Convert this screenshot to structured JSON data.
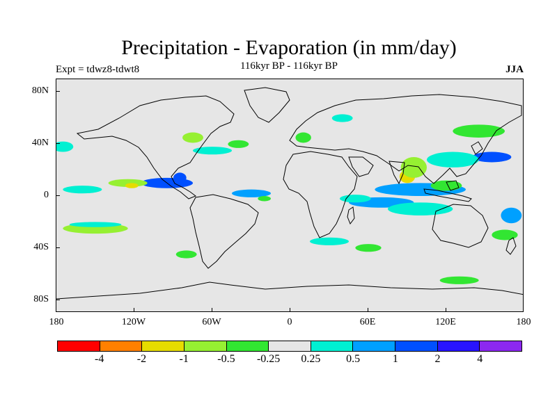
{
  "header": {
    "title": "Precipitation - Evaporation (in mm/day)",
    "subtitle": "116kyr BP - 116kyr BP",
    "left_label": "Expt = tdwz8-tdwt8",
    "right_label": "JJA"
  },
  "axes": {
    "lat_labels": [
      "80N",
      "40N",
      "0",
      "40S",
      "80S"
    ],
    "lon_labels": [
      "180",
      "120W",
      "60W",
      "0",
      "60E",
      "120E",
      "180"
    ]
  },
  "colorbar": {
    "colors": [
      "#ff0000",
      "#ff8000",
      "#e6dc00",
      "#96f032",
      "#32e632",
      "#e6e6e6",
      "#00f0d2",
      "#00a0ff",
      "#0050ff",
      "#2814ff",
      "#8c28f0"
    ],
    "labels": [
      "-4",
      "-2",
      "-1",
      "-0.5",
      "-0.25",
      "0.25",
      "0.5",
      "1",
      "2",
      "4"
    ]
  },
  "chart_data": {
    "type": "heatmap",
    "title": "Precipitation - Evaporation (in mm/day)",
    "subtitle": "116kyr BP - 116kyr BP",
    "lat_range": [
      -90,
      90
    ],
    "lon_range": [
      -180,
      180
    ],
    "levels": [
      -4,
      -2,
      -1,
      -0.5,
      -0.25,
      0.25,
      0.5,
      1,
      2,
      4
    ],
    "blobs": [
      {
        "lon": 100,
        "lat": 5,
        "rlon": 35,
        "rlat": 5,
        "level": 1
      },
      {
        "lon": 155,
        "lat": 30,
        "rlon": 15,
        "rlat": 4,
        "level": 2
      },
      {
        "lon": 125,
        "lat": 28,
        "rlon": 20,
        "rlat": 6,
        "level": 0.5
      },
      {
        "lon": 90,
        "lat": 15,
        "rlon": 6,
        "rlat": 5,
        "level": -1
      },
      {
        "lon": 95,
        "lat": 22,
        "rlon": 10,
        "rlat": 8,
        "level": -0.5
      },
      {
        "lon": 120,
        "lat": 8,
        "rlon": 12,
        "rlat": 4,
        "level": -0.25
      },
      {
        "lon": 145,
        "lat": 50,
        "rlon": 20,
        "rlat": 5,
        "level": -0.25
      },
      {
        "lon": 70,
        "lat": -5,
        "rlon": 25,
        "rlat": 4,
        "level": 1
      },
      {
        "lon": 50,
        "lat": -2,
        "rlon": 12,
        "rlat": 3,
        "level": 0.5
      },
      {
        "lon": 100,
        "lat": -10,
        "rlon": 25,
        "rlat": 5,
        "level": 0.5
      },
      {
        "lon": 165,
        "lat": -30,
        "rlon": 10,
        "rlat": 4,
        "level": -0.25
      },
      {
        "lon": 170,
        "lat": -15,
        "rlon": 8,
        "rlat": 6,
        "level": 1
      },
      {
        "lon": -95,
        "lat": 10,
        "rlon": 20,
        "rlat": 4,
        "level": 2
      },
      {
        "lon": -85,
        "lat": 14,
        "rlon": 5,
        "rlat": 4,
        "level": 2
      },
      {
        "lon": -125,
        "lat": 10,
        "rlon": 15,
        "rlat": 3,
        "level": -0.5
      },
      {
        "lon": -122,
        "lat": 8,
        "rlon": 5,
        "rlat": 2,
        "level": -1
      },
      {
        "lon": -160,
        "lat": 5,
        "rlon": 15,
        "rlat": 3,
        "level": 0.5
      },
      {
        "lon": -30,
        "lat": 2,
        "rlon": 15,
        "rlat": 3,
        "level": 1
      },
      {
        "lon": -20,
        "lat": -2,
        "rlon": 5,
        "rlat": 2,
        "level": -0.25
      },
      {
        "lon": -60,
        "lat": 35,
        "rlon": 15,
        "rlat": 3,
        "level": 0.5
      },
      {
        "lon": -75,
        "lat": 45,
        "rlon": 8,
        "rlat": 4,
        "level": -0.5
      },
      {
        "lon": -40,
        "lat": 40,
        "rlon": 8,
        "rlat": 3,
        "level": -0.25
      },
      {
        "lon": -150,
        "lat": -25,
        "rlon": 25,
        "rlat": 4,
        "level": -0.5
      },
      {
        "lon": -150,
        "lat": -22,
        "rlon": 20,
        "rlat": 2,
        "level": 0.5
      },
      {
        "lon": -80,
        "lat": -45,
        "rlon": 8,
        "rlat": 3,
        "level": -0.25
      },
      {
        "lon": 30,
        "lat": -35,
        "rlon": 15,
        "rlat": 3,
        "level": 0.5
      },
      {
        "lon": 60,
        "lat": -40,
        "rlon": 10,
        "rlat": 3,
        "level": -0.25
      },
      {
        "lon": 130,
        "lat": -65,
        "rlon": 15,
        "rlat": 3,
        "level": -0.25
      },
      {
        "lon": -175,
        "lat": 38,
        "rlon": 8,
        "rlat": 4,
        "level": 0.5
      },
      {
        "lon": 10,
        "lat": 45,
        "rlon": 6,
        "rlat": 4,
        "level": -0.25
      },
      {
        "lon": 40,
        "lat": 60,
        "rlon": 8,
        "rlat": 3,
        "level": 0.5
      }
    ]
  }
}
